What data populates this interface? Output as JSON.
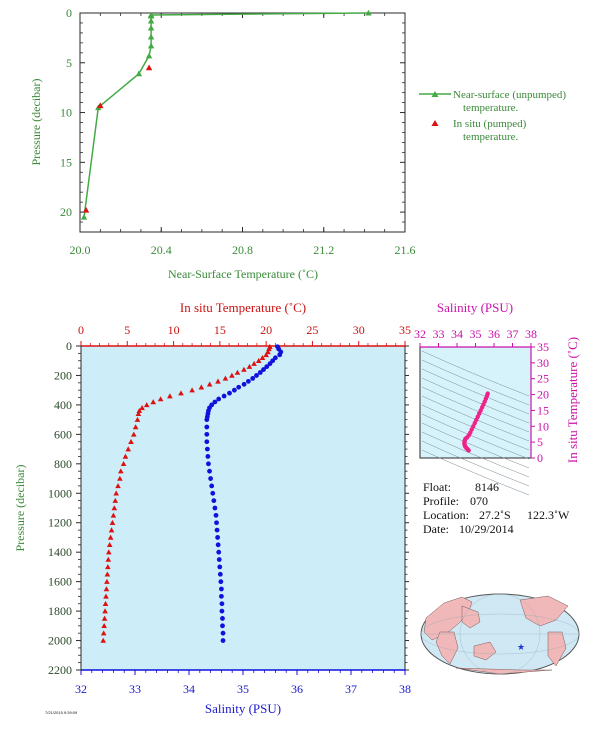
{
  "chart_data": [
    {
      "id": "near_surface",
      "type": "line",
      "xlabel": "Near-Surface Temperature (˚C)",
      "ylabel": "Pressure (decibar)",
      "xlim": [
        20.0,
        21.6
      ],
      "ylim": [
        22,
        0
      ],
      "xticks": [
        "20.0",
        "20.4",
        "20.8",
        "21.2",
        "21.6"
      ],
      "yticks": [
        "0",
        "5",
        "10",
        "15",
        "20"
      ],
      "series": [
        {
          "name": "Near-surface (unpumped) temperature.",
          "color": "#44aa44",
          "marker": "triangle-line",
          "points": [
            [
              21.42,
              0.0
            ],
            [
              20.35,
              0.2
            ],
            [
              20.35,
              0.3
            ],
            [
              20.35,
              0.8
            ],
            [
              20.35,
              1.5
            ],
            [
              20.35,
              2.4
            ],
            [
              20.35,
              3.3
            ],
            [
              20.34,
              4.3
            ],
            [
              20.29,
              6.1
            ],
            [
              20.09,
              9.5
            ],
            [
              20.02,
              20.5
            ]
          ]
        },
        {
          "name": "In situ (pumped) temperature.",
          "color": "#dd1111",
          "marker": "triangle",
          "points": [
            [
              20.34,
              5.5
            ],
            [
              20.1,
              9.3
            ],
            [
              20.03,
              19.8
            ]
          ]
        }
      ]
    },
    {
      "id": "profile",
      "type": "scatter",
      "ylabel": "Pressure (decibar)",
      "xlabel_top": "In situ Temperature (˚C)",
      "xlabel_bottom": "Salinity (PSU)",
      "temp_lim": [
        0,
        35
      ],
      "sal_lim": [
        32,
        38
      ],
      "ylim": [
        2200,
        0
      ],
      "temp_ticks": [
        "0",
        "5",
        "10",
        "15",
        "20",
        "25",
        "30",
        "35"
      ],
      "sal_ticks": [
        "32",
        "33",
        "34",
        "35",
        "36",
        "37",
        "38"
      ],
      "pres_ticks": [
        "0",
        "200",
        "400",
        "600",
        "800",
        "1000",
        "1200",
        "1400",
        "1600",
        "1800",
        "2000",
        "2200"
      ],
      "series": [
        {
          "name": "temperature",
          "color": "#dd1111",
          "marker": "triangle",
          "points": [
            [
              20.4,
              5
            ],
            [
              20.3,
              20
            ],
            [
              20.2,
              40
            ],
            [
              20.0,
              60
            ],
            [
              19.6,
              80
            ],
            [
              19.2,
              100
            ],
            [
              18.7,
              120
            ],
            [
              18.2,
              140
            ],
            [
              17.6,
              160
            ],
            [
              16.9,
              180
            ],
            [
              16.3,
              200
            ],
            [
              15.6,
              220
            ],
            [
              14.8,
              240
            ],
            [
              13.9,
              260
            ],
            [
              13.0,
              280
            ],
            [
              12.0,
              300
            ],
            [
              10.8,
              320
            ],
            [
              9.6,
              340
            ],
            [
              8.6,
              360
            ],
            [
              7.8,
              380
            ],
            [
              7.1,
              400
            ],
            [
              6.6,
              420
            ],
            [
              6.3,
              440
            ],
            [
              6.2,
              460
            ],
            [
              6.1,
              500
            ],
            [
              5.9,
              550
            ],
            [
              5.7,
              600
            ],
            [
              5.4,
              650
            ],
            [
              5.1,
              700
            ],
            [
              4.8,
              750
            ],
            [
              4.6,
              800
            ],
            [
              4.3,
              850
            ],
            [
              4.2,
              900
            ],
            [
              4.0,
              950
            ],
            [
              3.8,
              1000
            ],
            [
              3.7,
              1050
            ],
            [
              3.6,
              1100
            ],
            [
              3.5,
              1150
            ],
            [
              3.4,
              1200
            ],
            [
              3.3,
              1250
            ],
            [
              3.2,
              1300
            ],
            [
              3.1,
              1350
            ],
            [
              3.0,
              1400
            ],
            [
              2.95,
              1450
            ],
            [
              2.9,
              1500
            ],
            [
              2.85,
              1550
            ],
            [
              2.8,
              1600
            ],
            [
              2.75,
              1650
            ],
            [
              2.7,
              1700
            ],
            [
              2.65,
              1750
            ],
            [
              2.6,
              1800
            ],
            [
              2.55,
              1850
            ],
            [
              2.5,
              1900
            ],
            [
              2.45,
              1950
            ],
            [
              2.4,
              2000
            ]
          ]
        },
        {
          "name": "salinity",
          "color": "#1111dd",
          "marker": "circle",
          "points": [
            [
              35.64,
              5
            ],
            [
              35.66,
              20
            ],
            [
              35.7,
              40
            ],
            [
              35.68,
              60
            ],
            [
              35.6,
              80
            ],
            [
              35.55,
              100
            ],
            [
              35.5,
              120
            ],
            [
              35.44,
              140
            ],
            [
              35.38,
              160
            ],
            [
              35.32,
              180
            ],
            [
              35.25,
              200
            ],
            [
              35.18,
              220
            ],
            [
              35.1,
              240
            ],
            [
              35.02,
              260
            ],
            [
              34.92,
              280
            ],
            [
              34.84,
              300
            ],
            [
              34.75,
              320
            ],
            [
              34.65,
              340
            ],
            [
              34.55,
              360
            ],
            [
              34.48,
              380
            ],
            [
              34.42,
              400
            ],
            [
              34.38,
              420
            ],
            [
              34.36,
              440
            ],
            [
              34.35,
              460
            ],
            [
              34.34,
              480
            ],
            [
              34.33,
              500
            ],
            [
              34.33,
              550
            ],
            [
              34.33,
              600
            ],
            [
              34.33,
              650
            ],
            [
              34.34,
              700
            ],
            [
              34.35,
              750
            ],
            [
              34.36,
              800
            ],
            [
              34.38,
              850
            ],
            [
              34.4,
              900
            ],
            [
              34.42,
              950
            ],
            [
              34.44,
              1000
            ],
            [
              34.46,
              1050
            ],
            [
              34.48,
              1100
            ],
            [
              34.5,
              1150
            ],
            [
              34.51,
              1200
            ],
            [
              34.52,
              1250
            ],
            [
              34.53,
              1300
            ],
            [
              34.54,
              1350
            ],
            [
              34.55,
              1400
            ],
            [
              34.56,
              1450
            ],
            [
              34.57,
              1500
            ],
            [
              34.58,
              1550
            ],
            [
              34.59,
              1600
            ],
            [
              34.6,
              1650
            ],
            [
              34.6,
              1700
            ],
            [
              34.61,
              1750
            ],
            [
              34.61,
              1800
            ],
            [
              34.62,
              1850
            ],
            [
              34.62,
              1900
            ],
            [
              34.63,
              1950
            ],
            [
              34.63,
              2000
            ]
          ]
        }
      ]
    },
    {
      "id": "ts_diagram",
      "type": "scatter",
      "xlabel": "Salinity (PSU)",
      "ylabel": "In situ Temperature (˚C)",
      "xlim": [
        32,
        38
      ],
      "ylim": [
        0,
        35
      ],
      "xticks": [
        "32",
        "33",
        "34",
        "35",
        "36",
        "37",
        "38"
      ],
      "yticks": [
        "0",
        "5",
        "10",
        "15",
        "20",
        "25",
        "30",
        "35"
      ],
      "series": [
        {
          "name": "ts",
          "color": "#ee2288",
          "marker": "circle",
          "points": [
            [
              35.66,
              20.3
            ],
            [
              35.62,
              19.6
            ],
            [
              35.56,
              18.7
            ],
            [
              35.5,
              17.8
            ],
            [
              35.43,
              16.9
            ],
            [
              35.36,
              16.0
            ],
            [
              35.28,
              15.0
            ],
            [
              35.2,
              14.0
            ],
            [
              35.12,
              13.0
            ],
            [
              35.04,
              12.0
            ],
            [
              34.96,
              11.0
            ],
            [
              34.88,
              10.0
            ],
            [
              34.8,
              9.0
            ],
            [
              34.72,
              8.0
            ],
            [
              34.64,
              7.2
            ],
            [
              34.55,
              6.5
            ],
            [
              34.46,
              6.1
            ],
            [
              34.42,
              5.5
            ],
            [
              34.4,
              5.0
            ],
            [
              34.4,
              4.5
            ],
            [
              34.42,
              4.0
            ],
            [
              34.45,
              3.6
            ],
            [
              34.5,
              3.2
            ],
            [
              34.55,
              2.9
            ],
            [
              34.6,
              2.6
            ],
            [
              34.63,
              2.4
            ]
          ]
        }
      ]
    }
  ],
  "legend": {
    "line_label_1": "Near-surface (unpumped)",
    "line_label_2": "temperature.",
    "tri_label_1": "In situ (pumped)",
    "tri_label_2": "temperature."
  },
  "info": {
    "float_label": "Float:",
    "float_value": "8146",
    "profile_label": "Profile:",
    "profile_value": "070",
    "location_label": "Location:",
    "location_lat": "27.2˚S",
    "location_lon": "122.3˚W",
    "date_label": "Date:",
    "date_value": "10/29/2014"
  },
  "footer_stamp": "7/21/2015 9:39:09",
  "map": {
    "marker": "★",
    "marker_color": "#1a3adc",
    "ocean_color": "#cfe8f4",
    "land_color": "#f0b8b8"
  },
  "colors": {
    "green": "#44aa44",
    "red": "#dd1111",
    "blue": "#1111dd",
    "magenta": "#cc11aa",
    "profile_bg": "#cdeef8",
    "ts_bg": "#d6f2fb"
  }
}
